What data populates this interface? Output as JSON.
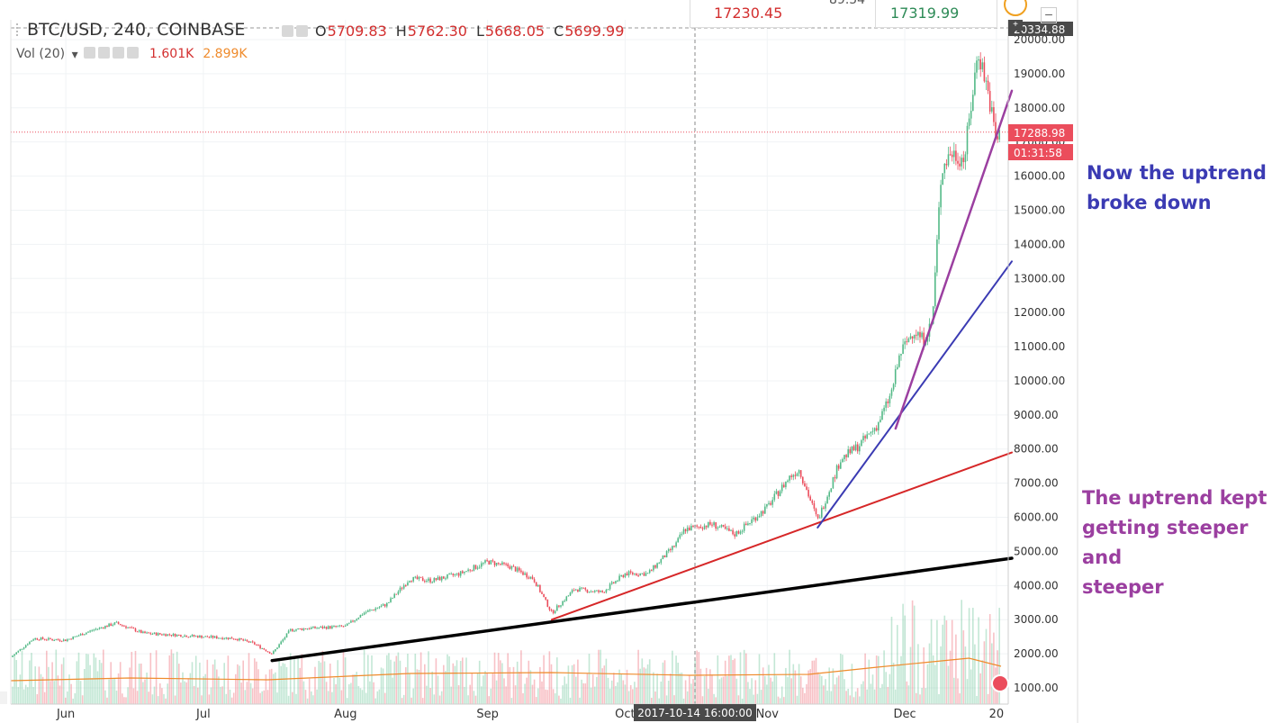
{
  "header": {
    "symbol": "BTC/USD, 240, COINBASE",
    "open_label": "O",
    "open": "5709.83",
    "high_label": "H",
    "high": "5762.30",
    "low_label": "L",
    "low": "5668.05",
    "close_label": "C",
    "close": "5699.99",
    "volume_label": "Vol (20)",
    "volume_value": "1.601K",
    "volume_ma": "2.899K"
  },
  "quote_bar": {
    "bid": "17230.45",
    "spread": "89.54",
    "ask": "17319.99"
  },
  "price_tags": {
    "top_value": "20334.88",
    "last_price": "17288.98",
    "countdown": "01:31:58"
  },
  "crosshair_time": "2017-10-14 16:00:00",
  "annotations": {
    "breakdown_line1": "Now the uptrend",
    "breakdown_line2": "broke down",
    "steeper_line1": "The uptrend kept",
    "steeper_line2": "getting steeper and",
    "steeper_line3": "steeper"
  },
  "colors": {
    "up_candle": "#53b987",
    "down_candle": "#eb4d5c",
    "trend_black": "#000000",
    "trend_red": "#d62728",
    "trend_blue": "#3b3bb3",
    "trend_purple": "#9b3fa0",
    "volume_ma": "#ef8b2c"
  },
  "chart_data": {
    "type": "line",
    "title": "BTC/USD, 240, COINBASE",
    "xlabel": "",
    "ylabel": "",
    "ylim": [
      700,
      20400
    ],
    "y_ticks": [
      "1000.00",
      "2000.00",
      "3000.00",
      "4000.00",
      "5000.00",
      "6000.00",
      "7000.00",
      "8000.00",
      "9000.00",
      "10000.00",
      "11000.00",
      "12000.00",
      "13000.00",
      "14000.00",
      "15000.00",
      "16000.00",
      "17000.00",
      "18000.00",
      "19000.00",
      "20000.00"
    ],
    "x_ticks": [
      "Jun",
      "Jul",
      "Aug",
      "Sep",
      "Oct",
      "Nov",
      "Dec",
      "20"
    ],
    "grid": true,
    "legend": "none",
    "series": [
      {
        "name": "BTC/USD",
        "x": [
          "2017-05-20",
          "2017-05-25",
          "2017-06-01",
          "2017-06-07",
          "2017-06-12",
          "2017-06-18",
          "2017-06-25",
          "2017-07-01",
          "2017-07-08",
          "2017-07-12",
          "2017-07-16",
          "2017-07-20",
          "2017-07-24",
          "2017-08-01",
          "2017-08-05",
          "2017-08-10",
          "2017-08-15",
          "2017-08-20",
          "2017-08-26",
          "2017-09-01",
          "2017-09-06",
          "2017-09-11",
          "2017-09-15",
          "2017-09-20",
          "2017-09-26",
          "2017-10-01",
          "2017-10-06",
          "2017-10-12",
          "2017-10-14",
          "2017-10-20",
          "2017-10-25",
          "2017-11-01",
          "2017-11-06",
          "2017-11-08",
          "2017-11-12",
          "2017-11-17",
          "2017-11-21",
          "2017-11-25",
          "2017-11-28",
          "2017-11-30",
          "2017-12-03",
          "2017-12-05",
          "2017-12-07",
          "2017-12-09",
          "2017-12-11",
          "2017-12-14",
          "2017-12-17",
          "2017-12-19",
          "2017-12-21",
          "2017-12-22"
        ],
        "values": [
          1900,
          2450,
          2400,
          2700,
          2900,
          2600,
          2550,
          2500,
          2450,
          2300,
          2000,
          2700,
          2750,
          2800,
          3200,
          3450,
          4200,
          4150,
          4350,
          4700,
          4550,
          4200,
          3200,
          3900,
          3800,
          4350,
          4350,
          5200,
          5650,
          5800,
          5500,
          6300,
          7200,
          7400,
          5900,
          7700,
          8100,
          8700,
          9600,
          10800,
          11500,
          11200,
          11700,
          16200,
          16700,
          16500,
          19700,
          18600,
          17000,
          17288.98
        ]
      }
    ],
    "volume_ma_series": {
      "name": "Vol (20)",
      "x": [
        "2017-05-20",
        "2017-06-15",
        "2017-07-15",
        "2017-08-15",
        "2017-09-15",
        "2017-10-15",
        "2017-11-10",
        "2017-11-25",
        "2017-12-05",
        "2017-12-15",
        "2017-12-22"
      ],
      "values": [
        1300,
        1450,
        1350,
        1700,
        1750,
        1600,
        1650,
        2050,
        2300,
        2550,
        2100
      ]
    },
    "trendlines": [
      {
        "name": "black",
        "x1": "2017-07-16",
        "y1": 1800,
        "x2": "2017-12-22",
        "y2": 4800
      },
      {
        "name": "red",
        "x1": "2017-09-15",
        "y1": 3000,
        "x2": "2017-12-22",
        "y2": 7900
      },
      {
        "name": "blue",
        "x1": "2017-11-12",
        "y1": 5700,
        "x2": "2017-12-22",
        "y2": 13500
      },
      {
        "name": "purple",
        "x1": "2017-11-29",
        "y1": 8600,
        "x2": "2017-12-22",
        "y2": 18500
      }
    ],
    "horizontal_line": 17288.98
  }
}
